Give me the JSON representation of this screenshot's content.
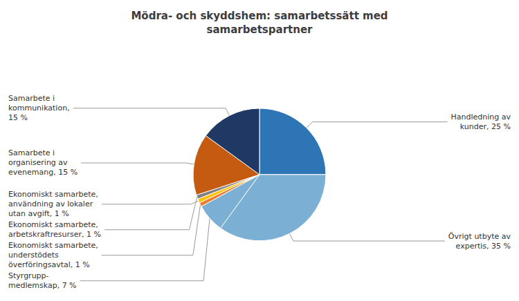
{
  "chart_data": {
    "type": "pie",
    "title": "Mödra- och skyddshem: samarbetssätt med\nsamarbetspartner",
    "categories": [
      "Handledning av\nkunder, 25 %",
      "Övrigt utbyte av\nexpertis, 35 %",
      "Styrgrupp-\nmedlemskap, 7 %",
      "Ekonomiskt samarbete,\nunderstödets\növerföringsavtal, 1 %",
      "Ekonomiskt samarbete,\nanvändning av lokaler\nutan avgift, 1 %",
      "Ekonomiskt samarbete,\narbetskraftresurser, 1 %",
      "Samarbete i\norganisering av\nevenemang, 15 %",
      "Samarbete i\nkommunikation,\n15 %"
    ],
    "values": [
      25,
      35,
      7,
      1,
      1,
      1,
      15,
      15
    ],
    "colors": [
      "#2E75B6",
      "#7BAFD4",
      "#7BAFD4",
      "#ED7D31",
      "#FFC000",
      "#808080",
      "#C55A11",
      "#1F3864"
    ]
  }
}
